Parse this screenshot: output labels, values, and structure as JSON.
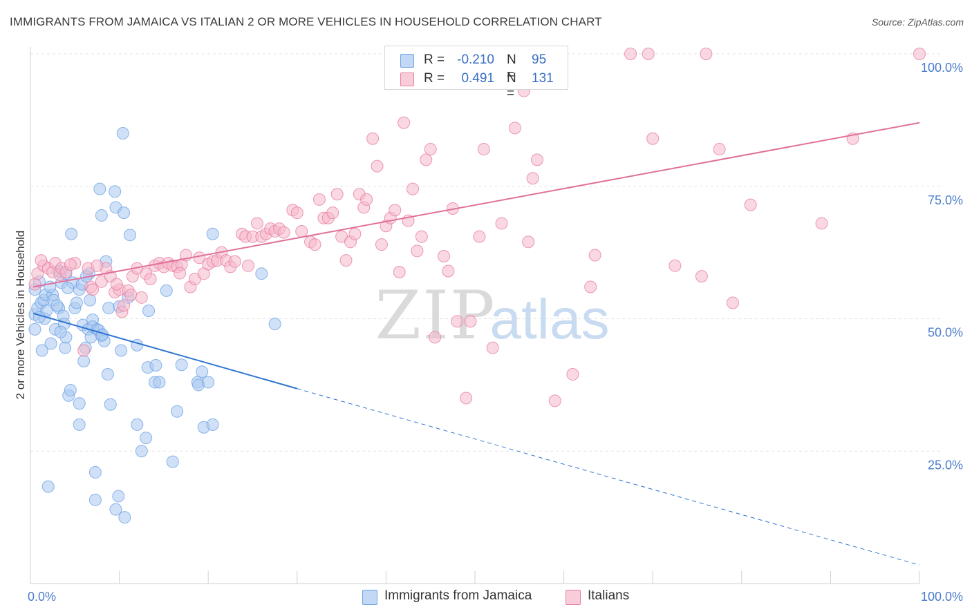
{
  "header": {
    "title": "IMMIGRANTS FROM JAMAICA VS ITALIAN 2 OR MORE VEHICLES IN HOUSEHOLD CORRELATION CHART",
    "source": "Source: ZipAtlas.com"
  },
  "watermark": {
    "zip": "ZIP",
    "atlas": "atlas"
  },
  "legend": {
    "rows": [
      {
        "r_label": "R =",
        "r_value": "-0.210",
        "n_label": "N =",
        "n_value": "95",
        "color": "#aac8f0"
      },
      {
        "r_label": "R =",
        "r_value": "0.491",
        "n_label": "N =",
        "n_value": "131",
        "color": "#f6b8cb"
      }
    ]
  },
  "bottom_legend": {
    "items": [
      {
        "label": "Immigrants from Jamaica",
        "color": "#aac8f0"
      },
      {
        "label": "Italians",
        "color": "#f6b8cb"
      }
    ]
  },
  "chart_data": {
    "type": "scatter",
    "ylabel": "2 or more Vehicles in Household",
    "xlim": [
      0,
      100
    ],
    "ylim": [
      0,
      100
    ],
    "x_tick_labels": [
      "0.0%",
      "100.0%"
    ],
    "y_ticks": [
      25,
      50,
      75,
      100
    ],
    "y_tick_labels": [
      "25.0%",
      "50.0%",
      "75.0%",
      "100.0%"
    ],
    "grid": true,
    "legend_placement": "top-center",
    "series": [
      {
        "name": "Immigrants from Jamaica",
        "color": "#6fa3e6",
        "fill": "#aac8f0",
        "trend": {
          "x0": 0.3,
          "y0": 51.0,
          "x1": 30.0,
          "y1": 36.8,
          "dash_to_x": 100.0,
          "dash_to_y": 3.5
        },
        "points": [
          [
            0.5,
            55.5
          ],
          [
            0.5,
            50.8
          ],
          [
            0.5,
            48.0
          ],
          [
            0.8,
            52.0
          ],
          [
            1.0,
            57.0
          ],
          [
            1.2,
            53.0
          ],
          [
            1.3,
            44.0
          ],
          [
            1.5,
            53.5
          ],
          [
            1.6,
            50.0
          ],
          [
            1.7,
            54.5
          ],
          [
            1.8,
            51.5
          ],
          [
            2.0,
            18.3
          ],
          [
            2.3,
            45.3
          ],
          [
            2.5,
            54.5
          ],
          [
            2.6,
            53.5
          ],
          [
            2.8,
            48.0
          ],
          [
            3.2,
            59.0
          ],
          [
            3.2,
            52.0
          ],
          [
            3.5,
            56.8
          ],
          [
            3.7,
            50.5
          ],
          [
            3.8,
            49.0
          ],
          [
            3.9,
            44.5
          ],
          [
            4.0,
            58.5
          ],
          [
            4.0,
            46.5
          ],
          [
            4.3,
            35.5
          ],
          [
            4.5,
            36.5
          ],
          [
            4.6,
            66.0
          ],
          [
            4.8,
            56.8
          ],
          [
            5.0,
            52.0
          ],
          [
            5.5,
            30.0
          ],
          [
            5.5,
            34.0
          ],
          [
            5.5,
            55.5
          ],
          [
            5.8,
            56.5
          ],
          [
            5.9,
            48.8
          ],
          [
            6.0,
            42.0
          ],
          [
            6.2,
            44.5
          ],
          [
            6.5,
            48.0
          ],
          [
            6.6,
            58.5
          ],
          [
            6.7,
            53.5
          ],
          [
            6.8,
            46.5
          ],
          [
            7.0,
            49.8
          ],
          [
            7.0,
            48.5
          ],
          [
            7.3,
            15.8
          ],
          [
            7.3,
            21.0
          ],
          [
            7.5,
            48.0
          ],
          [
            7.7,
            47.8
          ],
          [
            7.8,
            74.5
          ],
          [
            8.0,
            46.8
          ],
          [
            8.0,
            69.5
          ],
          [
            8.3,
            45.8
          ],
          [
            8.5,
            60.8
          ],
          [
            8.7,
            39.5
          ],
          [
            8.8,
            52.0
          ],
          [
            9.0,
            33.8
          ],
          [
            9.5,
            74.0
          ],
          [
            9.6,
            71.0
          ],
          [
            9.6,
            14.0
          ],
          [
            9.9,
            16.5
          ],
          [
            10.0,
            52.3
          ],
          [
            10.2,
            44.0
          ],
          [
            10.4,
            85.0
          ],
          [
            10.5,
            70.0
          ],
          [
            10.6,
            12.5
          ],
          [
            11.0,
            54.0
          ],
          [
            11.2,
            65.8
          ],
          [
            12.0,
            30.0
          ],
          [
            12.0,
            45.0
          ],
          [
            12.5,
            25.0
          ],
          [
            13.0,
            27.5
          ],
          [
            13.2,
            40.8
          ],
          [
            13.3,
            51.5
          ],
          [
            14.0,
            38.0
          ],
          [
            14.1,
            41.2
          ],
          [
            14.5,
            38.0
          ],
          [
            15.3,
            55.3
          ],
          [
            16.0,
            23.0
          ],
          [
            16.5,
            32.5
          ],
          [
            17.0,
            41.3
          ],
          [
            18.8,
            38.0
          ],
          [
            18.9,
            37.5
          ],
          [
            19.3,
            40.0
          ],
          [
            19.5,
            29.5
          ],
          [
            20.0,
            38.0
          ],
          [
            20.5,
            30.0
          ],
          [
            20.5,
            66.0
          ],
          [
            26.0,
            58.5
          ],
          [
            27.5,
            49.0
          ],
          [
            3.0,
            52.5
          ],
          [
            1.0,
            50.3
          ],
          [
            4.2,
            55.8
          ],
          [
            6.3,
            58.0
          ],
          [
            2.2,
            56.0
          ],
          [
            8.1,
            47.0
          ],
          [
            5.2,
            53.0
          ],
          [
            3.4,
            47.5
          ]
        ]
      },
      {
        "name": "Italians",
        "color": "#e77ea3",
        "fill": "#f6b8cb",
        "trend": {
          "x0": 0.3,
          "y0": 56.0,
          "x1": 100.0,
          "y1": 87.0
        },
        "points": [
          [
            0.5,
            56.5
          ],
          [
            0.8,
            58.5
          ],
          [
            1.5,
            60.0
          ],
          [
            2.0,
            59.5
          ],
          [
            2.5,
            58.8
          ],
          [
            2.8,
            60.5
          ],
          [
            3.3,
            58.3
          ],
          [
            3.5,
            59.5
          ],
          [
            4.0,
            58.8
          ],
          [
            5.0,
            60.5
          ],
          [
            6.0,
            44.0
          ],
          [
            6.5,
            59.5
          ],
          [
            6.8,
            56.0
          ],
          [
            7.0,
            55.5
          ],
          [
            8.0,
            57.0
          ],
          [
            8.5,
            59.5
          ],
          [
            9.0,
            58.0
          ],
          [
            9.5,
            55.0
          ],
          [
            10.0,
            55.5
          ],
          [
            10.3,
            51.3
          ],
          [
            10.5,
            52.5
          ],
          [
            11.0,
            55.3
          ],
          [
            11.3,
            54.5
          ],
          [
            11.5,
            58.0
          ],
          [
            12.0,
            59.5
          ],
          [
            12.5,
            54.0
          ],
          [
            13.0,
            58.5
          ],
          [
            13.5,
            57.5
          ],
          [
            14.0,
            60.0
          ],
          [
            14.5,
            60.5
          ],
          [
            15.0,
            59.8
          ],
          [
            15.5,
            60.5
          ],
          [
            16.0,
            60.0
          ],
          [
            16.5,
            59.8
          ],
          [
            17.0,
            60.2
          ],
          [
            17.5,
            62.0
          ],
          [
            18.0,
            56.0
          ],
          [
            18.5,
            57.5
          ],
          [
            19.0,
            61.5
          ],
          [
            19.5,
            58.5
          ],
          [
            20.0,
            60.3
          ],
          [
            20.5,
            60.8
          ],
          [
            21.0,
            61.0
          ],
          [
            21.5,
            62.5
          ],
          [
            22.0,
            61.0
          ],
          [
            22.5,
            59.8
          ],
          [
            23.0,
            60.8
          ],
          [
            23.8,
            66.0
          ],
          [
            24.2,
            65.5
          ],
          [
            24.5,
            60.0
          ],
          [
            25.0,
            65.5
          ],
          [
            25.5,
            68.0
          ],
          [
            26.0,
            65.5
          ],
          [
            26.5,
            66.0
          ],
          [
            27.0,
            67.0
          ],
          [
            27.5,
            66.5
          ],
          [
            28.0,
            67.0
          ],
          [
            28.5,
            66.3
          ],
          [
            29.5,
            70.5
          ],
          [
            30.0,
            70.0
          ],
          [
            31.5,
            64.5
          ],
          [
            32.0,
            64.0
          ],
          [
            32.5,
            72.5
          ],
          [
            33.0,
            69.0
          ],
          [
            33.5,
            69.0
          ],
          [
            34.0,
            70.0
          ],
          [
            34.5,
            73.5
          ],
          [
            35.0,
            65.5
          ],
          [
            35.5,
            61.0
          ],
          [
            36.0,
            64.5
          ],
          [
            36.5,
            66.0
          ],
          [
            37.0,
            73.5
          ],
          [
            37.5,
            71.0
          ],
          [
            37.8,
            72.5
          ],
          [
            38.5,
            84.0
          ],
          [
            39.0,
            78.8
          ],
          [
            39.5,
            64.0
          ],
          [
            40.0,
            67.5
          ],
          [
            40.5,
            69.0
          ],
          [
            41.0,
            70.5
          ],
          [
            41.5,
            58.8
          ],
          [
            42.0,
            87.0
          ],
          [
            42.5,
            68.5
          ],
          [
            43.0,
            74.5
          ],
          [
            43.5,
            62.8
          ],
          [
            44.0,
            65.5
          ],
          [
            44.5,
            80.0
          ],
          [
            45.0,
            82.0
          ],
          [
            45.5,
            46.5
          ],
          [
            46.5,
            61.8
          ],
          [
            47.0,
            59.0
          ],
          [
            47.5,
            70.8
          ],
          [
            48.0,
            49.5
          ],
          [
            49.0,
            35.0
          ],
          [
            49.5,
            49.5
          ],
          [
            50.0,
            100.0
          ],
          [
            50.5,
            65.5
          ],
          [
            51.0,
            82.0
          ],
          [
            52.0,
            44.5
          ],
          [
            53.0,
            68.0
          ],
          [
            54.0,
            96.0
          ],
          [
            54.5,
            86.0
          ],
          [
            55.0,
            100.0
          ],
          [
            55.5,
            93.0
          ],
          [
            56.0,
            64.5
          ],
          [
            56.5,
            76.5
          ],
          [
            57.0,
            80.0
          ],
          [
            58.0,
            100.0
          ],
          [
            58.5,
            94.5
          ],
          [
            59.0,
            34.5
          ],
          [
            61.0,
            39.5
          ],
          [
            63.0,
            56.0
          ],
          [
            63.5,
            62.0
          ],
          [
            67.5,
            100.0
          ],
          [
            69.5,
            100.0
          ],
          [
            70.0,
            84.0
          ],
          [
            72.5,
            60.0
          ],
          [
            76.0,
            100.0
          ],
          [
            75.5,
            58.0
          ],
          [
            77.5,
            82.0
          ],
          [
            79.0,
            53.0
          ],
          [
            81.0,
            71.5
          ],
          [
            89.0,
            68.0
          ],
          [
            92.5,
            84.0
          ],
          [
            100.0,
            100.0
          ],
          [
            1.2,
            61.0
          ],
          [
            4.5,
            60.2
          ],
          [
            7.5,
            60.0
          ],
          [
            9.7,
            56.5
          ],
          [
            16.8,
            58.6
          ],
          [
            30.5,
            66.5
          ]
        ]
      }
    ]
  }
}
